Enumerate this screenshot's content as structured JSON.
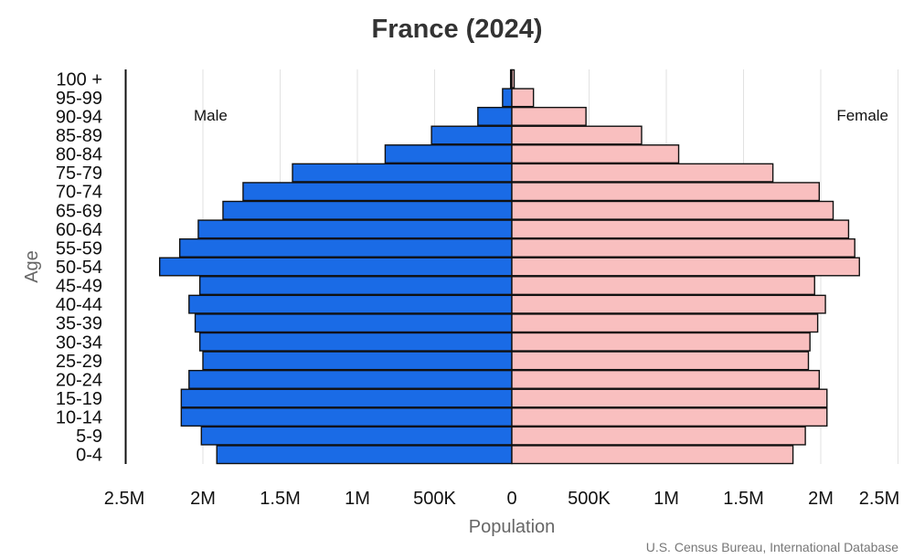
{
  "chart_data": {
    "type": "bar",
    "orientation": "horizontal-population-pyramid",
    "title": "France (2024)",
    "xlabel": "Population",
    "ylabel": "Age",
    "categories": [
      "0-4",
      "5-9",
      "10-14",
      "15-19",
      "20-24",
      "25-29",
      "30-34",
      "35-39",
      "40-44",
      "45-49",
      "50-54",
      "55-59",
      "60-64",
      "65-69",
      "70-74",
      "75-79",
      "80-84",
      "85-89",
      "90-94",
      "95-99",
      "100 +"
    ],
    "series": [
      {
        "name": "Male",
        "color": "#1a6be6",
        "side": "left",
        "values": [
          1910000,
          2010000,
          2140000,
          2140000,
          2090000,
          2000000,
          2020000,
          2050000,
          2090000,
          2020000,
          2280000,
          2150000,
          2030000,
          1870000,
          1740000,
          1420000,
          820000,
          520000,
          220000,
          60000,
          8000
        ]
      },
      {
        "name": "Female",
        "color": "#f9bfbf",
        "side": "right",
        "values": [
          1820000,
          1900000,
          2040000,
          2040000,
          1990000,
          1920000,
          1930000,
          1980000,
          2030000,
          1960000,
          2250000,
          2220000,
          2180000,
          2080000,
          1990000,
          1690000,
          1080000,
          840000,
          480000,
          140000,
          15000
        ]
      }
    ],
    "xlim": [
      -2500000,
      2500000
    ],
    "x_ticks": [
      -2500000,
      -2000000,
      -1500000,
      -1000000,
      -500000,
      0,
      500000,
      1000000,
      1500000,
      2000000,
      2500000
    ],
    "x_tick_labels": [
      "2.5M",
      "2M",
      "1.5M",
      "1M",
      "500K",
      "0",
      "500K",
      "1M",
      "1.5M",
      "2M",
      "2.5M"
    ],
    "grid": true,
    "legend": "inline side labels (top-left Male, top-right Female)",
    "source": "U.S. Census Bureau, International Database"
  }
}
